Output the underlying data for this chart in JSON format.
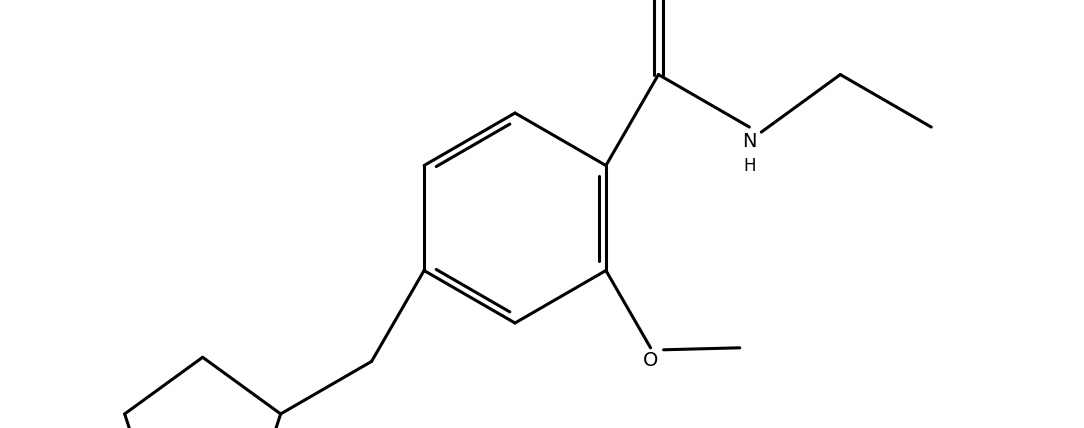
{
  "background_color": "#ffffff",
  "line_color": "#000000",
  "line_width": 2.2,
  "font_size": 13,
  "figsize": [
    10.84,
    4.28
  ],
  "dpi": 100,
  "xlim": [
    0.0,
    10.84
  ],
  "ylim": [
    0.0,
    4.28
  ]
}
